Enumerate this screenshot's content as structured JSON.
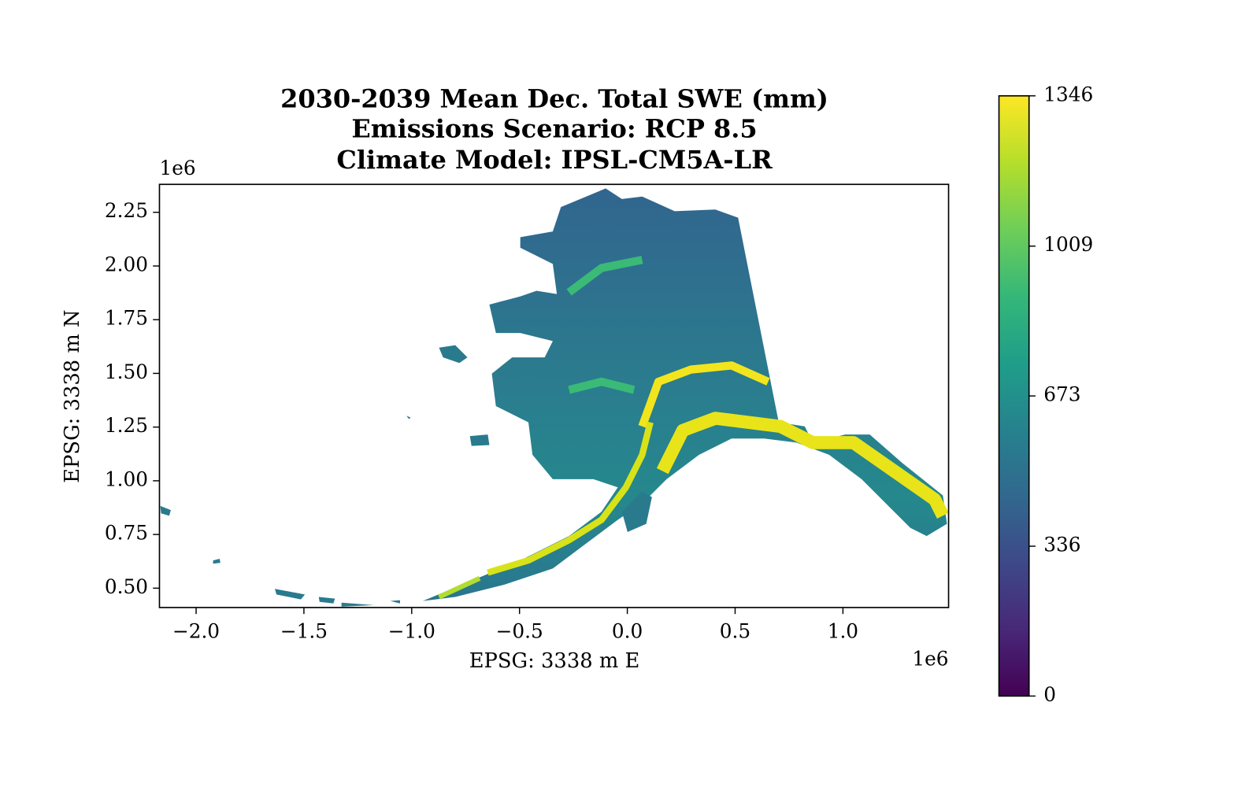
{
  "chart_data": {
    "type": "raster-map",
    "title": [
      "2030-2039 Mean Dec. Total SWE (mm)",
      "Emissions Scenario: RCP 8.5",
      "Climate Model: IPSL-CM5A-LR"
    ],
    "x_label": "EPSG: 3338 m E",
    "y_label": "EPSG: 3338 m N",
    "x_offset_label": "1e6",
    "y_offset_label": "1e6",
    "xlim": [
      -2.17,
      1.49
    ],
    "ylim": [
      0.41,
      2.38
    ],
    "xticks": [
      {
        "value": -2.0,
        "label": "−2.0"
      },
      {
        "value": -1.5,
        "label": "−1.5"
      },
      {
        "value": -1.0,
        "label": "−1.0"
      },
      {
        "value": -0.5,
        "label": "−0.5"
      },
      {
        "value": 0,
        "label": "0.0"
      },
      0.5,
      {
        "value": 1.0,
        "label": "1.0"
      }
    ],
    "yticks": [
      {
        "value": 0.5,
        "label": "0.50"
      },
      0.75,
      {
        "value": 1.0,
        "label": "1.00"
      },
      1.25,
      {
        "value": 1.5,
        "label": "1.50"
      },
      1.75,
      {
        "value": 2.0,
        "label": "2.00"
      },
      2.25
    ],
    "colormap": "viridis",
    "cbar_lim": [
      0,
      1346
    ],
    "cbar_ticks": [
      0,
      336,
      673,
      1009,
      1346
    ]
  }
}
